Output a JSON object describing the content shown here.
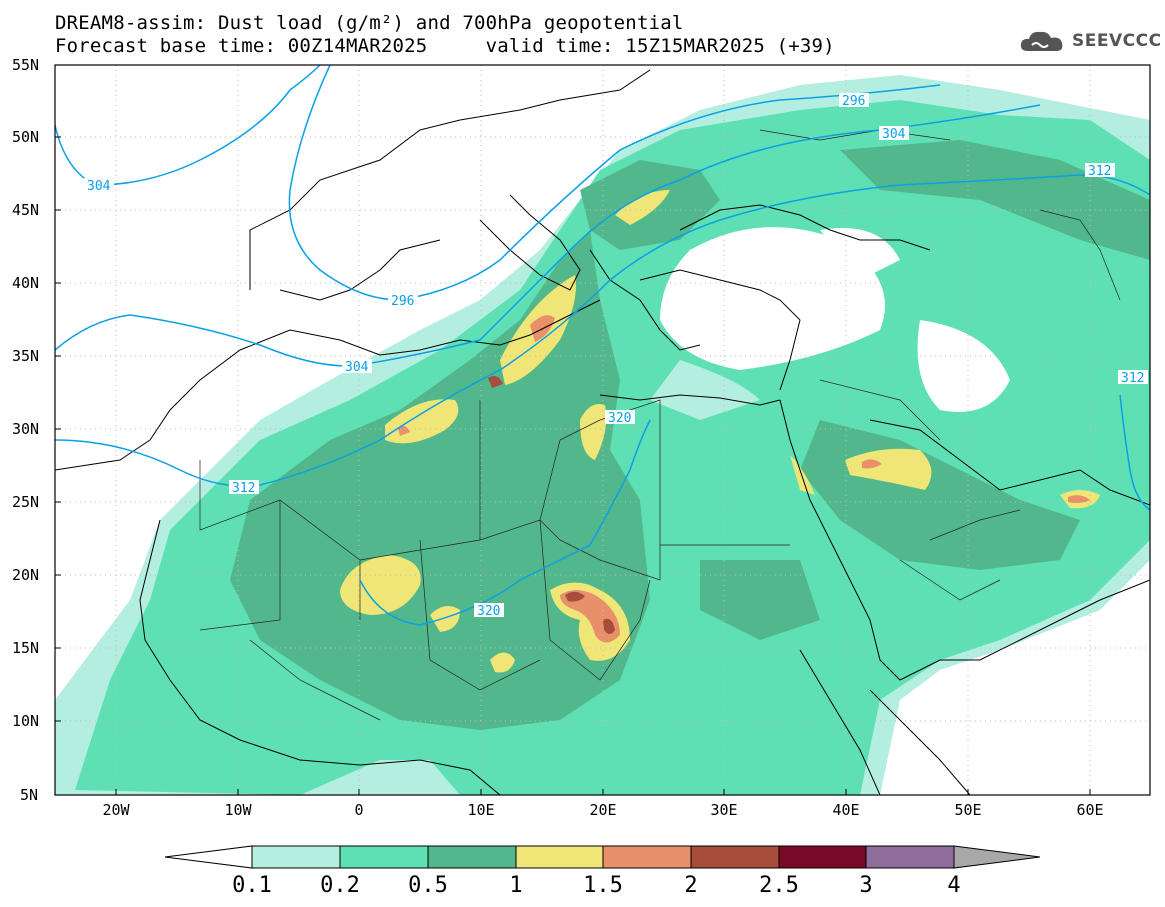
{
  "header": {
    "title_line1": "DREAM8-assim: Dust load (g/m²) and 700hPa geopotential",
    "title_line2": "Forecast base time: 00Z14MAR2025     valid time: 15Z15MAR2025 (+39)"
  },
  "logo": {
    "text": "SEEVCCC",
    "icon": "cloud-logo-icon"
  },
  "axes": {
    "lat_labels": [
      "55N",
      "50N",
      "45N",
      "40N",
      "35N",
      "30N",
      "25N",
      "20N",
      "15N",
      "10N",
      "5N"
    ],
    "lon_labels": [
      "20W",
      "10W",
      "0",
      "10E",
      "20E",
      "30E",
      "40E",
      "50E",
      "60E"
    ]
  },
  "colorbar": {
    "labels": [
      "0.1",
      "0.2",
      "0.5",
      "1",
      "1.5",
      "2",
      "2.5",
      "3",
      "4"
    ],
    "colors": [
      "#ffffff",
      "#b4eee0",
      "#5fe0b4",
      "#52b88c",
      "#f0e678",
      "#e8906a",
      "#a84c3c",
      "#780a28",
      "#906c9c",
      "#a8a8a8"
    ]
  },
  "contours": {
    "color": "#0aa0e8",
    "labels": [
      "296",
      "304",
      "312",
      "320",
      "296",
      "304",
      "312",
      "312",
      "320"
    ]
  },
  "colors": {
    "land_line": "#000000",
    "dust_light": "#b4eee0",
    "dust_med": "#5fe0b4",
    "dust_dark": "#52b88c",
    "dust_yellow": "#f0e678",
    "dust_orange": "#e8906a",
    "dust_red": "#a84c3c"
  }
}
